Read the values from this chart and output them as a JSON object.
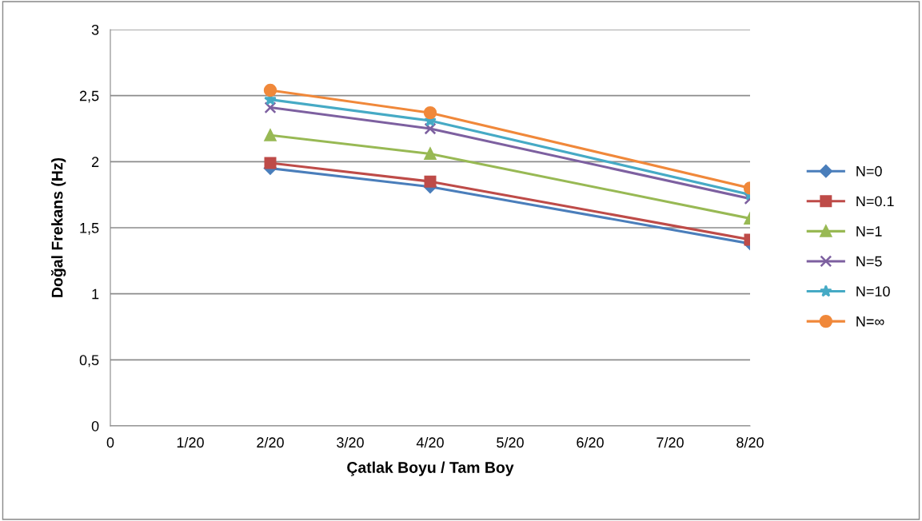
{
  "chart_data": {
    "type": "line",
    "xlabel": "Çatlak Boyu / Tam Boy",
    "ylabel": "Doğal Frekans (Hz)",
    "categories": [
      "0",
      "1/20",
      "2/20",
      "3/20",
      "4/20",
      "5/20",
      "6/20",
      "7/20",
      "8/20"
    ],
    "ylim": [
      0,
      3
    ],
    "yticks": [
      0,
      {
        "value": 0.5,
        "label": "0,5"
      },
      1,
      {
        "value": 1.5,
        "label": "1,5"
      },
      2,
      {
        "value": 2.5,
        "label": "2,5"
      },
      3
    ],
    "grid": "y",
    "legend": "right",
    "line_style": "solid",
    "series": [
      {
        "name": "N=0",
        "color": "#4a7ebb",
        "marker": "diamond",
        "values": [
          null,
          null,
          1.95,
          null,
          1.81,
          null,
          null,
          null,
          1.38
        ]
      },
      {
        "name": "N=0.1",
        "color": "#be4b48",
        "marker": "square",
        "values": [
          null,
          null,
          1.99,
          null,
          1.85,
          null,
          null,
          null,
          1.41
        ]
      },
      {
        "name": "N=1",
        "color": "#98b954",
        "marker": "triangle",
        "values": [
          null,
          null,
          2.2,
          null,
          2.06,
          null,
          null,
          null,
          1.57
        ]
      },
      {
        "name": "N=5",
        "color": "#7d60a0",
        "marker": "cross",
        "values": [
          null,
          null,
          2.41,
          null,
          2.25,
          null,
          null,
          null,
          1.72
        ]
      },
      {
        "name": "N=10",
        "color": "#46aac5",
        "marker": "star",
        "values": [
          null,
          null,
          2.47,
          null,
          2.31,
          null,
          null,
          null,
          1.75
        ]
      },
      {
        "name": "N=∞",
        "color": "#f0883a",
        "marker": "circle",
        "values": [
          null,
          null,
          2.54,
          null,
          2.37,
          null,
          null,
          null,
          1.8
        ]
      }
    ]
  }
}
